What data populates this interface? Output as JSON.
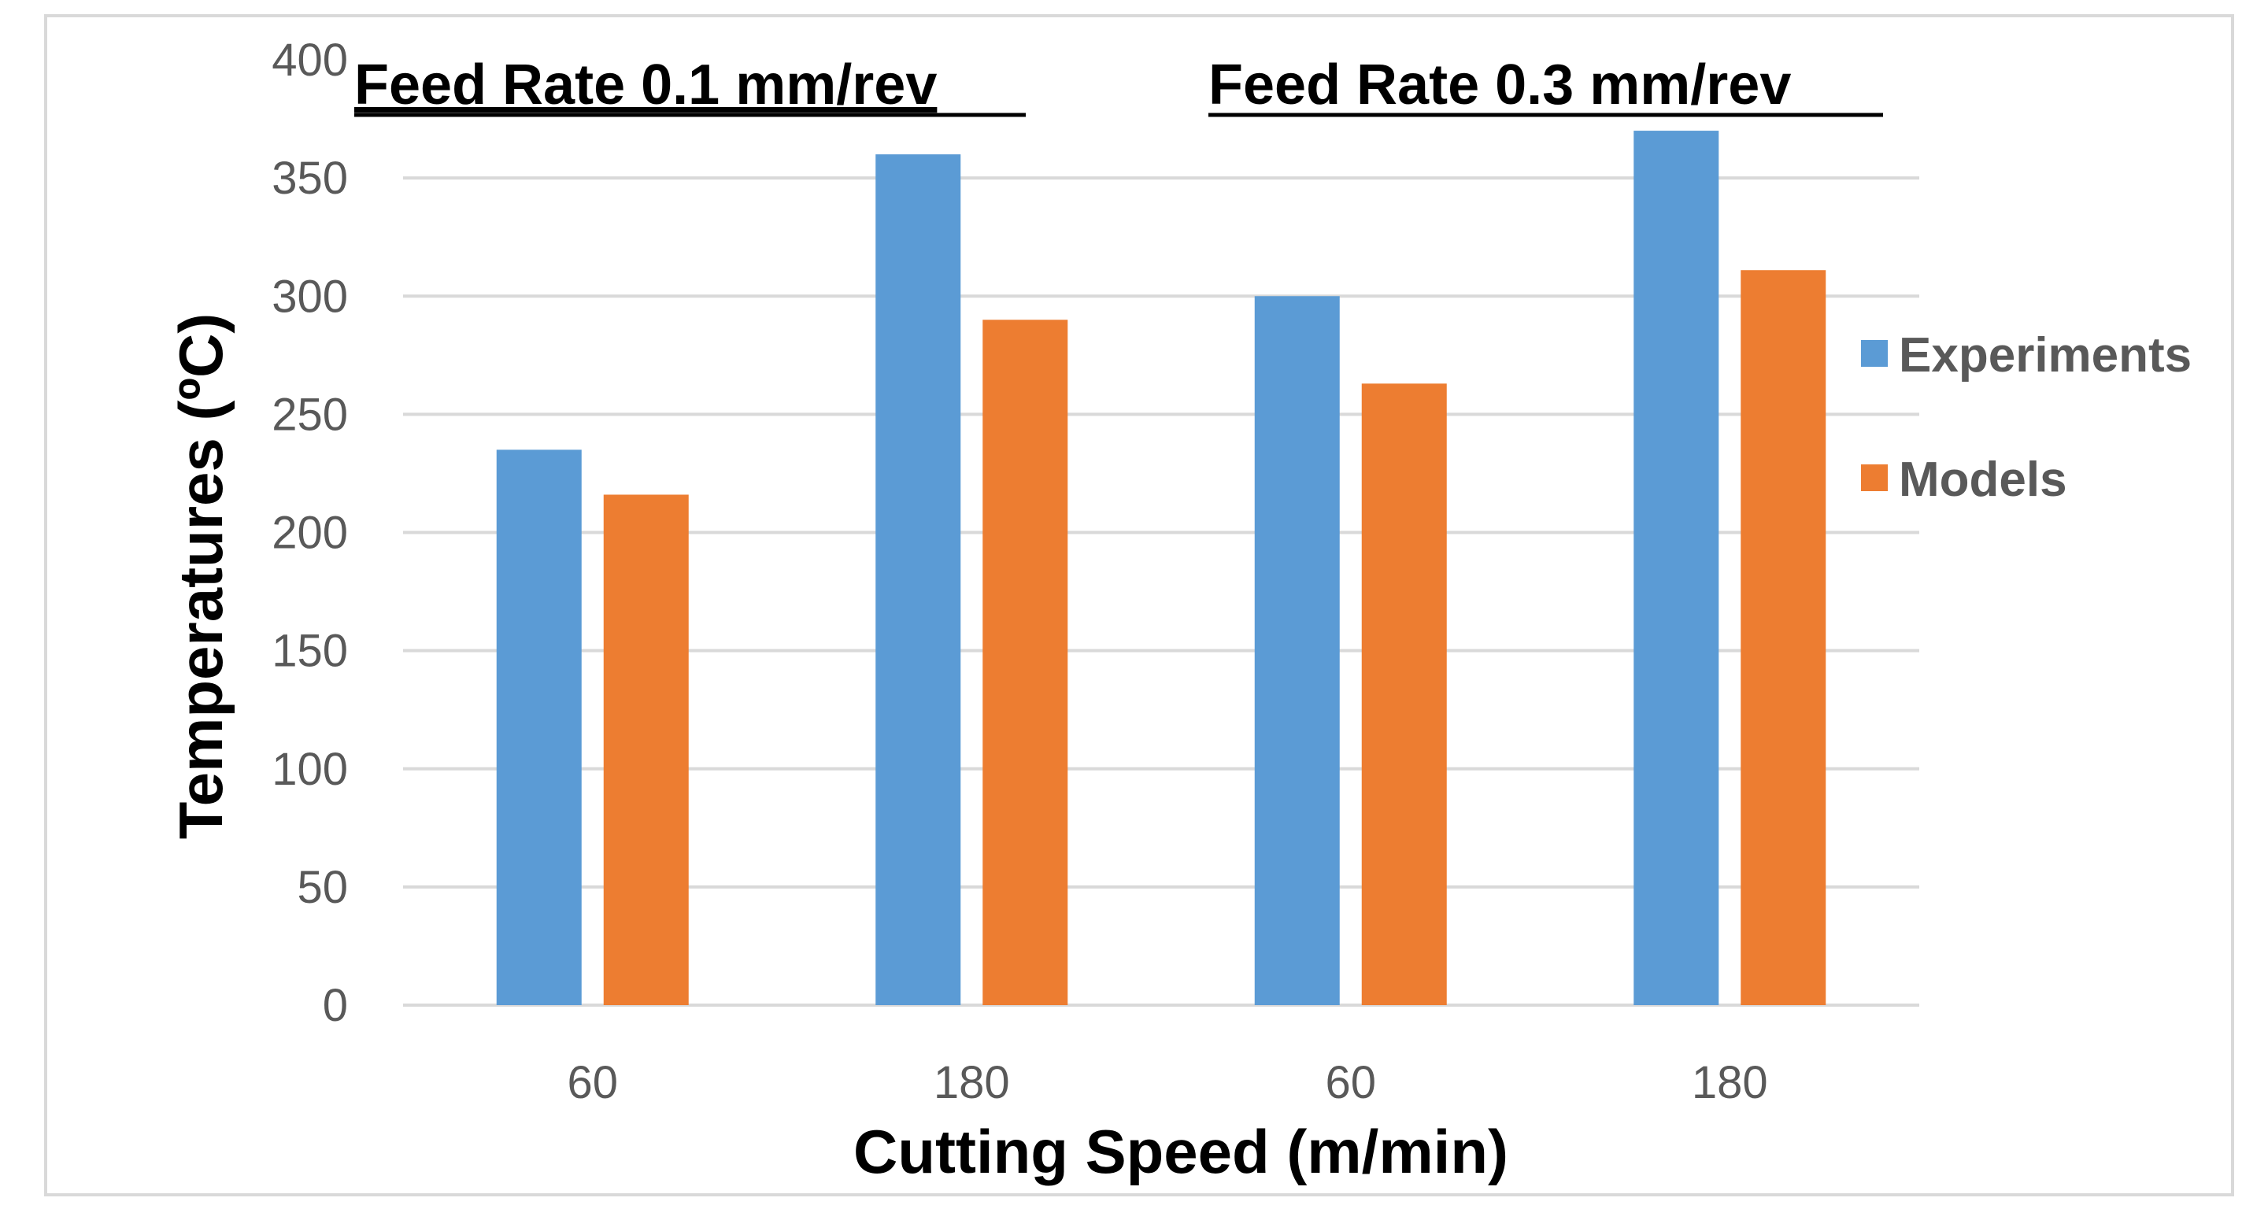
{
  "chart_data": {
    "type": "bar",
    "title": "",
    "group_titles": [
      "Feed Rate 0.1 mm/rev",
      "Feed Rate 0.3 mm/rev"
    ],
    "categories": [
      "60",
      "180",
      "60",
      "180"
    ],
    "series": [
      {
        "name": "Experiments",
        "color": "#5b9bd5",
        "values": [
          235,
          360,
          300,
          370
        ]
      },
      {
        "name": "Models",
        "color": "#ed7d31",
        "values": [
          216,
          290,
          263,
          311
        ]
      }
    ],
    "xlabel": "Cutting Speed (m/min)",
    "ylabel": "Temperatures (ºC)",
    "ylim": [
      0,
      400
    ],
    "yticks": [
      0,
      50,
      100,
      150,
      200,
      250,
      300,
      350,
      400
    ],
    "grid": true,
    "legend": "right"
  }
}
